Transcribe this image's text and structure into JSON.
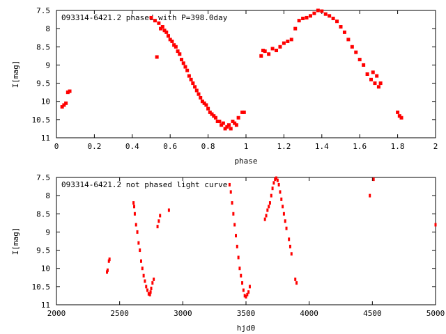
{
  "chart_data": [
    {
      "type": "scatter",
      "title": "093314-6421.2 phased with P=398.0day",
      "xlabel": "phase",
      "ylabel": "I[mag]",
      "xlim": [
        0,
        2
      ],
      "ylim": [
        7.5,
        11
      ],
      "y_inverted": true,
      "grid": false,
      "x_ticks": [
        "0",
        "0.2",
        "0.4",
        "0.6",
        "0.8",
        "1",
        "1.2",
        "1.4",
        "1.6",
        "1.8",
        "2"
      ],
      "y_ticks": [
        "7.5",
        "8",
        "8.5",
        "9",
        "9.5",
        "10",
        "10.5",
        "11"
      ],
      "marker_color": "#ff0000",
      "series": [
        {
          "x": [
            0.03,
            0.04,
            0.05,
            0.06,
            0.07,
            0.5,
            0.52,
            0.54,
            0.56,
            0.58,
            0.6,
            0.62,
            0.64,
            0.66,
            0.68,
            0.7,
            0.72,
            0.74,
            0.76,
            0.78,
            0.8,
            0.82,
            0.84,
            0.86,
            0.88,
            0.9,
            0.92,
            0.94,
            0.96,
            0.98,
            0.53,
            0.55,
            0.57,
            0.59,
            0.61,
            0.63,
            0.65,
            0.67,
            0.69,
            0.71,
            0.73,
            0.75,
            0.77,
            0.79,
            0.81,
            0.83,
            0.85,
            0.87,
            0.89,
            0.91,
            0.93,
            0.95,
            0.99,
            1.08,
            1.09,
            1.1,
            1.12,
            1.14,
            1.16,
            1.18,
            1.2,
            1.22,
            1.24,
            1.26,
            1.28,
            1.3,
            1.32,
            1.34,
            1.36,
            1.38,
            1.4,
            1.42,
            1.44,
            1.46,
            1.48,
            1.5,
            1.52,
            1.54,
            1.56,
            1.58,
            1.6,
            1.62,
            1.64,
            1.66,
            1.68,
            1.7,
            1.67,
            1.69,
            1.71,
            1.8,
            1.81,
            1.82
          ],
          "y": [
            10.15,
            10.1,
            10.05,
            9.75,
            9.72,
            7.7,
            7.78,
            7.85,
            7.95,
            8.1,
            8.3,
            8.45,
            8.62,
            8.85,
            9.05,
            9.3,
            9.5,
            9.7,
            9.9,
            10.05,
            10.2,
            10.35,
            10.45,
            10.55,
            10.6,
            10.7,
            10.75,
            10.6,
            10.45,
            10.3,
            8.78,
            8.0,
            8.05,
            8.2,
            8.35,
            8.5,
            8.7,
            8.95,
            9.15,
            9.4,
            9.6,
            9.8,
            10.0,
            10.1,
            10.3,
            10.4,
            10.55,
            10.65,
            10.75,
            10.65,
            10.55,
            10.65,
            10.3,
            8.75,
            8.6,
            8.62,
            8.7,
            8.55,
            8.6,
            8.5,
            8.4,
            8.35,
            8.3,
            8.0,
            7.78,
            7.72,
            7.7,
            7.65,
            7.58,
            7.5,
            7.52,
            7.6,
            7.65,
            7.72,
            7.8,
            7.95,
            8.1,
            8.3,
            8.5,
            8.65,
            8.85,
            9.0,
            9.25,
            9.4,
            9.5,
            9.6,
            9.2,
            9.3,
            9.5,
            10.3,
            10.4,
            10.45
          ]
        }
      ]
    },
    {
      "type": "scatter",
      "title": "093314-6421.2 not phased light curve",
      "xlabel": "hjd0",
      "ylabel": "I[mag]",
      "xlim": [
        2000,
        5000
      ],
      "ylim": [
        7.5,
        11
      ],
      "y_inverted": true,
      "grid": false,
      "x_ticks": [
        "2000",
        "2500",
        "3000",
        "3500",
        "4000",
        "4500",
        "5000"
      ],
      "y_ticks": [
        "7.5",
        "8",
        "8.5",
        "9",
        "9.5",
        "10",
        "10.5",
        "11"
      ],
      "marker_color": "#ff0000",
      "series": [
        {
          "x": [
            2400,
            2405,
            2415,
            2420,
            2610,
            2615,
            2620,
            2630,
            2640,
            2650,
            2660,
            2670,
            2680,
            2690,
            2700,
            2710,
            2720,
            2730,
            2740,
            2745,
            2750,
            2760,
            2770,
            2800,
            2810,
            2820,
            2890,
            3370,
            3380,
            3390,
            3400,
            3410,
            3420,
            3430,
            3440,
            3450,
            3460,
            3470,
            3480,
            3490,
            3500,
            3510,
            3520,
            3530,
            3650,
            3660,
            3670,
            3680,
            3690,
            3700,
            3710,
            3720,
            3730,
            3740,
            3750,
            3760,
            3770,
            3780,
            3790,
            3800,
            3810,
            3820,
            3840,
            3850,
            3860,
            3890,
            3900,
            4480,
            4510,
            5000
          ],
          "y": [
            10.1,
            10.05,
            9.8,
            9.75,
            8.2,
            8.3,
            8.5,
            8.8,
            9.0,
            9.3,
            9.5,
            9.8,
            10.0,
            10.2,
            10.35,
            10.5,
            10.6,
            10.7,
            10.72,
            10.65,
            10.55,
            10.4,
            10.3,
            8.85,
            8.7,
            8.55,
            8.4,
            7.7,
            7.9,
            8.2,
            8.5,
            8.8,
            9.1,
            9.4,
            9.7,
            10.0,
            10.2,
            10.4,
            10.6,
            10.75,
            10.78,
            10.72,
            10.65,
            10.5,
            8.65,
            8.55,
            8.4,
            8.3,
            8.2,
            8.0,
            7.8,
            7.65,
            7.55,
            7.52,
            7.58,
            7.7,
            7.9,
            8.1,
            8.3,
            8.5,
            8.7,
            8.9,
            9.2,
            9.4,
            9.6,
            10.3,
            10.4,
            8.0,
            7.55,
            8.8
          ]
        }
      ]
    }
  ]
}
